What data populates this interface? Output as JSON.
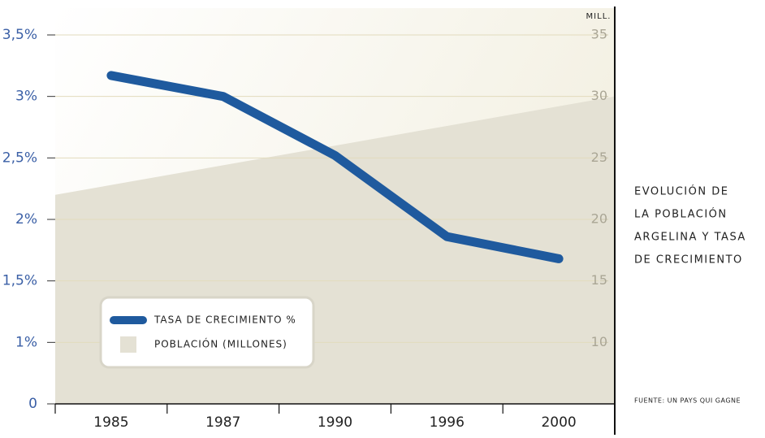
{
  "chart_data": {
    "type": "line",
    "title": [
      "EVOLUCIÓN DE",
      "LA POBLACIÓN",
      "ARGELINA Y TASA",
      "DE CRECIMIENTO"
    ],
    "source": "FUENTE: UN PAYS QUI GAGNE",
    "y2_label": "MILL.",
    "categories": [
      "1985",
      "1987",
      "1990",
      "1996",
      "2000"
    ],
    "series": [
      {
        "name": "TASA DE CRECIMIENTO %",
        "type": "line",
        "color": "#1f5a9e",
        "values": [
          3.17,
          3.0,
          2.52,
          1.86,
          1.68
        ]
      },
      {
        "name": "POBLACIÓN (MILLONES)",
        "type": "area",
        "axis": "y2",
        "color": "#e4e1d4",
        "values": [
          22.8,
          24.4,
          26.0,
          27.6,
          29.2
        ]
      }
    ],
    "ylim": [
      0,
      3.5
    ],
    "yticks": [
      0,
      {
        "value": 1,
        "label": "1%"
      },
      {
        "value": 1.5,
        "label": "1,5%"
      },
      {
        "value": 2,
        "label": "2%"
      },
      {
        "value": 2.5,
        "label": "2,5%"
      },
      {
        "value": 3,
        "label": "3%"
      },
      {
        "value": 3.5,
        "label": "3,5%"
      }
    ],
    "y2lim": [
      5,
      35
    ],
    "y2ticks": [
      10,
      15,
      20,
      25,
      30,
      35
    ],
    "grid": true,
    "legend": "lower left"
  }
}
